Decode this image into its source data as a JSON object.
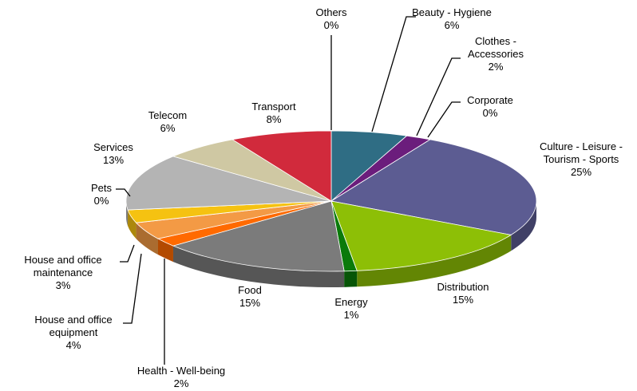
{
  "chart_data": {
    "type": "pie",
    "categories": [
      "Others",
      "Beauty - Hygiene",
      "Clothes - Accessories",
      "Corporate",
      "Culture - Leisure - Tourism - Sports",
      "Distribution",
      "Energy",
      "Food",
      "Health - Well-being",
      "House and office equipment",
      "House and office maintenance",
      "Pets",
      "Services",
      "Telecom",
      "Transport"
    ],
    "values": [
      0,
      6,
      2,
      0,
      25,
      15,
      1,
      15,
      2,
      4,
      3,
      0,
      13,
      6,
      8
    ],
    "value_labels": [
      "0%",
      "6%",
      "2%",
      "0%",
      "25%",
      "15%",
      "1%",
      "15%",
      "2%",
      "4%",
      "3%",
      "0%",
      "13%",
      "6%",
      "8%"
    ],
    "colors": [
      "#4f81bd",
      "#2f6d84",
      "#6b1d7c",
      "#d9a3e0",
      "#5c5c92",
      "#8dbf06",
      "#0a7a0a",
      "#7b7b7b",
      "#ff6a00",
      "#f39a45",
      "#f5c211",
      "#ffe08a",
      "#b4b4b4",
      "#cfc8a3",
      "#d12a3c"
    ]
  }
}
